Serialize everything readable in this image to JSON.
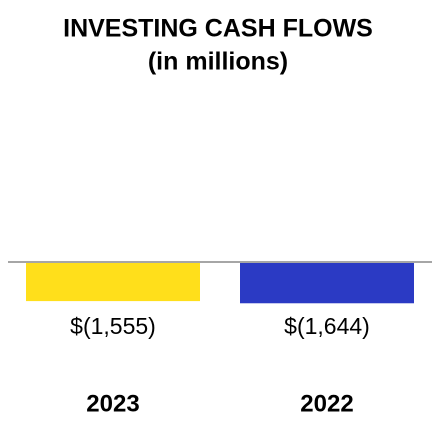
{
  "chart_data": {
    "type": "bar",
    "title": "INVESTING CASH FLOWS",
    "subtitle": "(in millions)",
    "categories": [
      "2023",
      "2022"
    ],
    "values": [
      -1555,
      -1644
    ],
    "value_labels": [
      "$(1,555)",
      "$(1,644)"
    ],
    "colors": [
      "#ffdf1b",
      "#2b3ac4"
    ],
    "ylim": [
      -2000,
      0
    ]
  }
}
